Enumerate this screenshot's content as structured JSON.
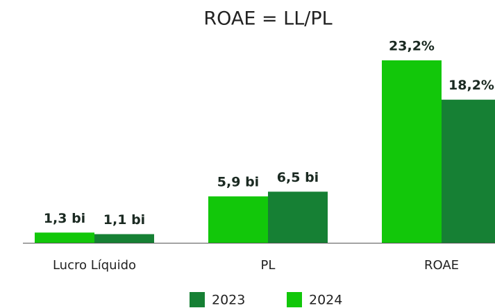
{
  "chart_data": {
    "type": "bar",
    "title": "ROAE = LL/PL",
    "categories": [
      "Lucro Líquido",
      "PL",
      "ROAE"
    ],
    "series": [
      {
        "name": "2023",
        "color": "#168034",
        "values": [
          1.1,
          6.5,
          18.2
        ],
        "value_labels": [
          "1,1 bi",
          "6,5 bi",
          "18,2%"
        ]
      },
      {
        "name": "2024",
        "color": "#12c70a",
        "values": [
          1.3,
          5.9,
          23.2
        ],
        "value_labels": [
          "1,3 bi",
          "5,9 bi",
          "23,2%"
        ]
      }
    ],
    "legend": "bottom"
  }
}
